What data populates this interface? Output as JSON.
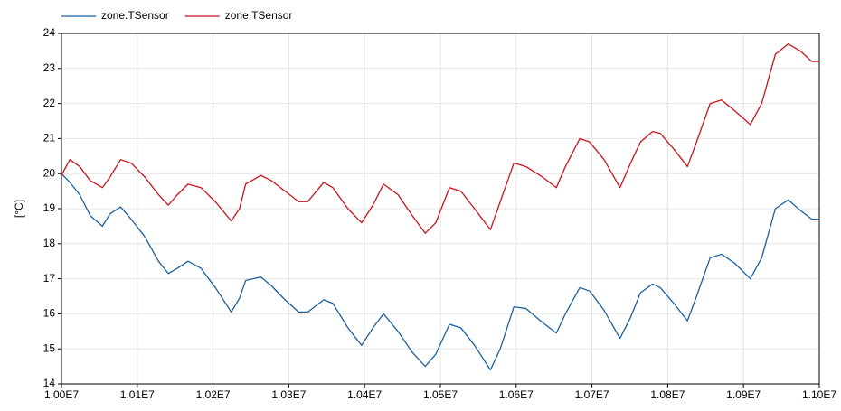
{
  "chart_data": {
    "type": "line",
    "ylabel": "[°C]",
    "x": [
      10000000,
      10011000,
      10024000,
      10038000,
      10054000,
      10064000,
      10078000,
      10092000,
      10110000,
      10128000,
      10141000,
      10153000,
      10167000,
      10184000,
      10203000,
      10224000,
      10235000,
      10243000,
      10263000,
      10277000,
      10295000,
      10313000,
      10325000,
      10346000,
      10358000,
      10378000,
      10396000,
      10411000,
      10425000,
      10444000,
      10463000,
      10480000,
      10494000,
      10512000,
      10527000,
      10545000,
      10566000,
      10579000,
      10597000,
      10613000,
      10635000,
      10653000,
      10665000,
      10684000,
      10697000,
      10716000,
      10737000,
      10751000,
      10764000,
      10780000,
      10790000,
      10808000,
      10826000,
      10838000,
      10856000,
      10871000,
      10888000,
      10909000,
      10924000,
      10942000,
      10959000,
      10975000,
      10990000,
      11000000
    ],
    "series": [
      {
        "name": "zone.TSensor",
        "color": "#1c5f9e",
        "values": [
          20.0,
          19.75,
          19.4,
          18.8,
          18.5,
          18.85,
          19.05,
          18.7,
          18.2,
          17.5,
          17.15,
          17.3,
          17.5,
          17.3,
          16.75,
          16.05,
          16.45,
          16.95,
          17.05,
          16.8,
          16.4,
          16.05,
          16.05,
          16.4,
          16.3,
          15.6,
          15.1,
          15.6,
          16.0,
          15.5,
          14.9,
          14.5,
          14.85,
          15.7,
          15.6,
          15.1,
          14.4,
          15.0,
          16.2,
          16.15,
          15.75,
          15.45,
          16.0,
          16.75,
          16.65,
          16.1,
          15.3,
          15.9,
          16.6,
          16.85,
          16.75,
          16.3,
          15.8,
          16.5,
          17.6,
          17.7,
          17.45,
          17.0,
          17.6,
          19.0,
          19.25,
          18.95,
          18.7,
          18.7
        ]
      },
      {
        "name": "zone.TSensor",
        "color": "#c8141e",
        "values": [
          19.95,
          20.4,
          20.2,
          19.8,
          19.6,
          19.9,
          20.4,
          20.3,
          19.9,
          19.4,
          19.1,
          19.4,
          19.7,
          19.6,
          19.2,
          18.65,
          19.0,
          19.7,
          19.95,
          19.8,
          19.5,
          19.2,
          19.2,
          19.75,
          19.6,
          19.0,
          18.6,
          19.1,
          19.7,
          19.4,
          18.8,
          18.3,
          18.6,
          19.6,
          19.5,
          19.0,
          18.4,
          19.2,
          20.3,
          20.2,
          19.9,
          19.6,
          20.2,
          21.0,
          20.9,
          20.4,
          19.6,
          20.3,
          20.9,
          21.2,
          21.15,
          20.7,
          20.2,
          20.9,
          22.0,
          22.1,
          21.8,
          21.4,
          22.0,
          23.4,
          23.7,
          23.5,
          23.2,
          23.2
        ]
      }
    ],
    "xlim": [
      10000000,
      11000000
    ],
    "xticks": [
      {
        "value": 10000000,
        "label": "1.00E7"
      },
      {
        "value": 10100000,
        "label": "1.01E7"
      },
      {
        "value": 10200000,
        "label": "1.02E7"
      },
      {
        "value": 10300000,
        "label": "1.03E7"
      },
      {
        "value": 10400000,
        "label": "1.04E7"
      },
      {
        "value": 10500000,
        "label": "1.05E7"
      },
      {
        "value": 10600000,
        "label": "1.06E7"
      },
      {
        "value": 10700000,
        "label": "1.07E7"
      },
      {
        "value": 10800000,
        "label": "1.08E7"
      },
      {
        "value": 10900000,
        "label": "1.09E7"
      },
      {
        "value": 11000000,
        "label": "1.10E7"
      }
    ],
    "ylim": [
      14,
      24
    ],
    "yticks": [
      14,
      15,
      16,
      17,
      18,
      19,
      20,
      21,
      22,
      23,
      24
    ],
    "grid": true,
    "legend": "top-left"
  }
}
